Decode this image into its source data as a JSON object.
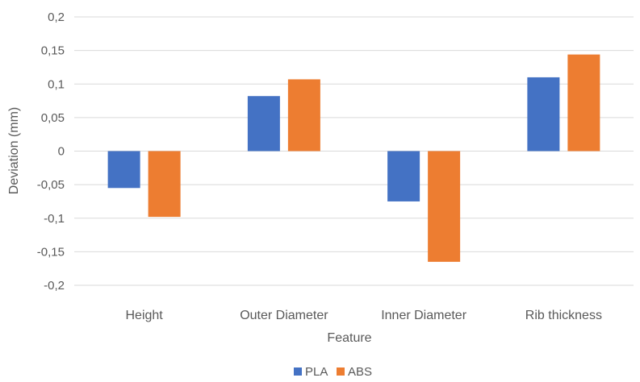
{
  "chart_data": {
    "type": "bar",
    "title": "",
    "xlabel": "Feature",
    "ylabel": "Deviation (mm)",
    "categories": [
      "Height",
      "Outer Diameter",
      "Inner Diameter",
      "Rib thickness"
    ],
    "series": [
      {
        "name": "PLA",
        "color": "#4472C4",
        "values": [
          -0.055,
          0.082,
          -0.075,
          0.11
        ]
      },
      {
        "name": "ABS",
        "color": "#ED7D31",
        "values": [
          -0.098,
          0.107,
          -0.165,
          0.144
        ]
      }
    ],
    "ylim": [
      -0.2,
      0.2
    ],
    "yticks": [
      0.2,
      0.15,
      0.1,
      0.05,
      0,
      -0.05,
      -0.1,
      -0.15,
      -0.2
    ],
    "ytick_labels": [
      "0,2",
      "0,15",
      "0,1",
      "0,05",
      "0",
      "-0,05",
      "-0,1",
      "-0,15",
      "-0,2"
    ],
    "grid": true,
    "legend_position": "bottom"
  }
}
